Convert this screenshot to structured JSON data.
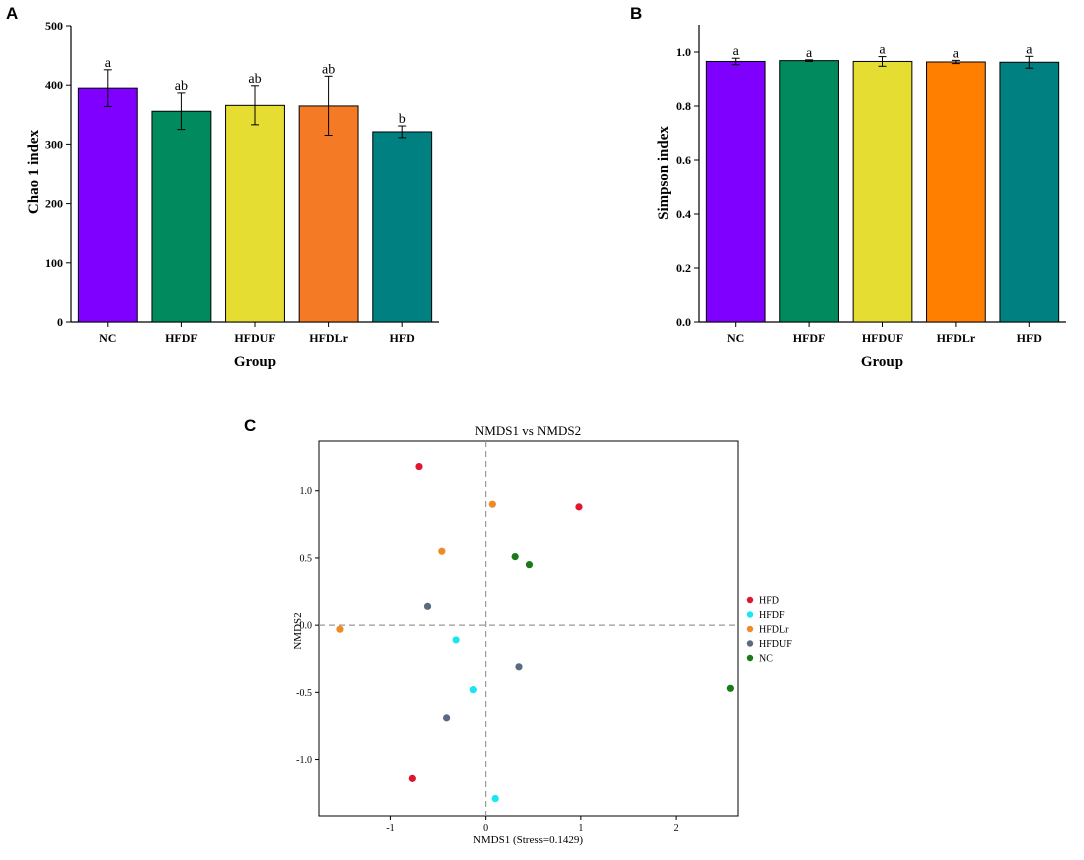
{
  "panel_labels": {
    "a": "A",
    "b": "B",
    "c": "C"
  },
  "chart_data": [
    {
      "id": "A",
      "type": "bar",
      "ylabel": "Chao 1 index",
      "xlabel": "Group",
      "ylim": [
        0,
        500
      ],
      "yticks": [
        0,
        100,
        200,
        300,
        400,
        500
      ],
      "ytick_labels": [
        "0",
        "100",
        "200",
        "300",
        "400",
        "500"
      ],
      "categories": [
        "NC",
        "HFDF",
        "HFDUF",
        "HFDLr",
        "HFD"
      ],
      "values": [
        395,
        356,
        366,
        365,
        321
      ],
      "errors": [
        31,
        31,
        33,
        50,
        10
      ],
      "significance": [
        "a",
        "ab",
        "ab",
        "ab",
        "b"
      ],
      "colors": [
        "#8000ff",
        "#008a5e",
        "#e5dd32",
        "#f47a26",
        "#008080"
      ]
    },
    {
      "id": "B",
      "type": "bar",
      "ylabel": "Simpson index",
      "xlabel": "Group",
      "ylim": [
        0,
        1.1
      ],
      "yticks": [
        0,
        0.2,
        0.4,
        0.6,
        0.8,
        1.0
      ],
      "ytick_labels": [
        "0.0",
        "0.2",
        "0.4",
        "0.6",
        "0.8",
        "1.0"
      ],
      "categories": [
        "NC",
        "HFDF",
        "HFDUF",
        "HFDLr",
        "HFD"
      ],
      "values": [
        0.965,
        0.968,
        0.965,
        0.963,
        0.962
      ],
      "errors": [
        0.012,
        0.003,
        0.018,
        0.006,
        0.022
      ],
      "significance": [
        "a",
        "a",
        "a",
        "a",
        "a"
      ],
      "colors": [
        "#8000ff",
        "#008a5e",
        "#e5dd32",
        "#ff8000",
        "#008080"
      ]
    },
    {
      "id": "C",
      "type": "scatter",
      "title": "NMDS1 vs NMDS2",
      "xlabel": "NMDS1 (Stress=0.1429)",
      "ylabel": "NMDS2",
      "xlim": [
        -1.75,
        2.65
      ],
      "ylim": [
        -1.42,
        1.37
      ],
      "xticks": [
        -1,
        0,
        1,
        2
      ],
      "xtick_labels": [
        "-1",
        "0",
        "1",
        "2"
      ],
      "yticks": [
        -1.0,
        -0.5,
        0.0,
        0.5,
        1.0
      ],
      "ytick_labels": [
        "-1.0",
        "-0.5",
        "0.0",
        "0.5",
        "1.0"
      ],
      "reference_lines": {
        "x": 0,
        "y": 0
      },
      "series": [
        {
          "name": "HFD",
          "color": "#e0152e",
          "points": [
            [
              -0.7,
              1.18
            ],
            [
              0.98,
              0.88
            ],
            [
              -0.77,
              -1.14
            ]
          ]
        },
        {
          "name": "HFDF",
          "color": "#19e6f0",
          "points": [
            [
              -0.31,
              -0.11
            ],
            [
              -0.13,
              -0.48
            ],
            [
              0.1,
              -1.29
            ]
          ]
        },
        {
          "name": "HFDLr",
          "color": "#f08a24",
          "points": [
            [
              0.07,
              0.9
            ],
            [
              -0.46,
              0.55
            ],
            [
              -1.53,
              -0.03
            ]
          ]
        },
        {
          "name": "HFDUF",
          "color": "#5a6a80",
          "points": [
            [
              -0.61,
              0.14
            ],
            [
              0.35,
              -0.31
            ],
            [
              -0.41,
              -0.69
            ]
          ]
        },
        {
          "name": "NC",
          "color": "#1a7a1a",
          "points": [
            [
              0.31,
              0.51
            ],
            [
              0.46,
              0.45
            ],
            [
              2.57,
              -0.47
            ]
          ]
        }
      ]
    }
  ]
}
